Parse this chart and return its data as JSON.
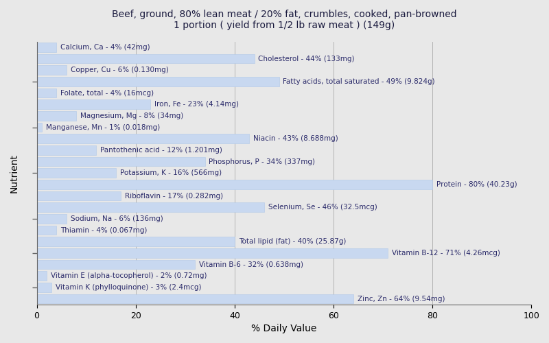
{
  "title": "Beef, ground, 80% lean meat / 20% fat, crumbles, cooked, pan-browned\n1 portion ( yield from 1/2 lb raw meat ) (149g)",
  "xlabel": "% Daily Value",
  "ylabel": "Nutrient",
  "xlim": [
    0,
    100
  ],
  "bar_color": "#c8d8f0",
  "bar_edge_color": "#b0c8e8",
  "background_color": "#e8e8e8",
  "plot_background_color": "#e8e8e8",
  "nutrients": [
    {
      "label": "Calcium, Ca - 4% (42mg)",
      "value": 4
    },
    {
      "label": "Cholesterol - 44% (133mg)",
      "value": 44
    },
    {
      "label": "Copper, Cu - 6% (0.130mg)",
      "value": 6
    },
    {
      "label": "Fatty acids, total saturated - 49% (9.824g)",
      "value": 49
    },
    {
      "label": "Folate, total - 4% (16mcg)",
      "value": 4
    },
    {
      "label": "Iron, Fe - 23% (4.14mg)",
      "value": 23
    },
    {
      "label": "Magnesium, Mg - 8% (34mg)",
      "value": 8
    },
    {
      "label": "Manganese, Mn - 1% (0.018mg)",
      "value": 1
    },
    {
      "label": "Niacin - 43% (8.688mg)",
      "value": 43
    },
    {
      "label": "Pantothenic acid - 12% (1.201mg)",
      "value": 12
    },
    {
      "label": "Phosphorus, P - 34% (337mg)",
      "value": 34
    },
    {
      "label": "Potassium, K - 16% (566mg)",
      "value": 16
    },
    {
      "label": "Protein - 80% (40.23g)",
      "value": 80
    },
    {
      "label": "Riboflavin - 17% (0.282mg)",
      "value": 17
    },
    {
      "label": "Selenium, Se - 46% (32.5mcg)",
      "value": 46
    },
    {
      "label": "Sodium, Na - 6% (136mg)",
      "value": 6
    },
    {
      "label": "Thiamin - 4% (0.067mg)",
      "value": 4
    },
    {
      "label": "Total lipid (fat) - 40% (25.87g)",
      "value": 40
    },
    {
      "label": "Vitamin B-12 - 71% (4.26mcg)",
      "value": 71
    },
    {
      "label": "Vitamin B-6 - 32% (0.638mg)",
      "value": 32
    },
    {
      "label": "Vitamin E (alpha-tocopherol) - 2% (0.72mg)",
      "value": 2
    },
    {
      "label": "Vitamin K (phylloquinone) - 3% (2.4mcg)",
      "value": 3
    },
    {
      "label": "Zinc, Zn - 64% (9.54mg)",
      "value": 64
    }
  ],
  "xticks": [
    0,
    20,
    40,
    60,
    80,
    100
  ],
  "title_fontsize": 10,
  "label_fontsize": 7.5,
  "tick_fontsize": 9,
  "axis_label_fontsize": 10,
  "bar_height": 0.82,
  "ytick_positions": [
    3,
    7,
    11,
    15,
    18,
    21
  ],
  "text_color": "#2a2a6a"
}
